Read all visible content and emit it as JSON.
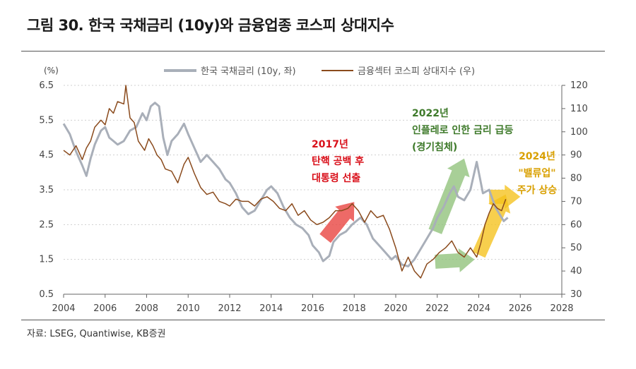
{
  "header": {
    "title": "그림 30. 한국 국채금리 (10y)와 금융업종 코스피 상대지수"
  },
  "footer": {
    "source": "자료: LSEG, Quantiwise, KB증권"
  },
  "colors": {
    "bond": "#a9afb9",
    "kospi": "#8a4a1c",
    "arrow_red": "#e8403c",
    "arrow_green": "#8fc27a",
    "arrow_yellow": "#f5c21b",
    "anno_red": "#d9101a",
    "anno_green": "#3e7a2a",
    "anno_yellow": "#d9a000"
  },
  "chart_data": {
    "type": "line",
    "xlabel": "",
    "ylabel_left": "(%)",
    "ylabel_right": "",
    "x_range": [
      2004,
      2028
    ],
    "x_ticks": [
      "2004",
      "2006",
      "2008",
      "2010",
      "2012",
      "2014",
      "2016",
      "2018",
      "2020",
      "2022",
      "2024",
      "2026",
      "2028"
    ],
    "y_left_range": [
      0.5,
      6.5
    ],
    "y_left_ticks": [
      "6.5",
      "5.5",
      "4.5",
      "3.5",
      "2.5",
      "1.5",
      "0.5"
    ],
    "y_right_range": [
      30,
      120
    ],
    "y_right_ticks": [
      "120",
      "110",
      "100",
      "90",
      "80",
      "70",
      "60",
      "50",
      "40",
      "30"
    ],
    "grid": "horizontal-dotted",
    "legend_position": "top-center",
    "series": [
      {
        "name": "한국 국채금리 (10y, 좌)",
        "axis": "left",
        "x": [
          2004.0,
          2004.3,
          2004.6,
          2004.9,
          2005.1,
          2005.3,
          2005.5,
          2005.8,
          2006.0,
          2006.2,
          2006.4,
          2006.6,
          2006.9,
          2007.2,
          2007.5,
          2007.8,
          2008.0,
          2008.2,
          2008.4,
          2008.6,
          2008.8,
          2009.0,
          2009.2,
          2009.5,
          2009.8,
          2010.0,
          2010.3,
          2010.6,
          2010.9,
          2011.2,
          2011.5,
          2011.8,
          2012.0,
          2012.3,
          2012.6,
          2012.9,
          2013.2,
          2013.5,
          2013.8,
          2014.0,
          2014.3,
          2014.6,
          2014.9,
          2015.2,
          2015.5,
          2015.8,
          2016.0,
          2016.3,
          2016.5,
          2016.8,
          2017.0,
          2017.3,
          2017.6,
          2017.9,
          2018.1,
          2018.3,
          2018.6,
          2018.9,
          2019.2,
          2019.5,
          2019.8,
          2020.0,
          2020.3,
          2020.6,
          2020.9,
          2021.2,
          2021.5,
          2021.8,
          2022.0,
          2022.3,
          2022.6,
          2022.8,
          2023.0,
          2023.3,
          2023.6,
          2023.9,
          2024.2,
          2024.5,
          2024.8,
          2025.0,
          2025.2,
          2025.4
        ],
        "values": [
          5.4,
          5.1,
          4.6,
          4.2,
          3.9,
          4.4,
          4.8,
          5.2,
          5.3,
          5.0,
          4.9,
          4.8,
          4.9,
          5.2,
          5.3,
          5.7,
          5.5,
          5.9,
          6.0,
          5.9,
          5.0,
          4.5,
          4.9,
          5.1,
          5.4,
          5.1,
          4.7,
          4.3,
          4.5,
          4.3,
          4.1,
          3.8,
          3.7,
          3.4,
          3.0,
          2.8,
          2.9,
          3.2,
          3.5,
          3.6,
          3.4,
          3.0,
          2.7,
          2.5,
          2.4,
          2.2,
          1.9,
          1.7,
          1.45,
          1.6,
          2.0,
          2.2,
          2.3,
          2.5,
          2.6,
          2.7,
          2.5,
          2.1,
          1.9,
          1.7,
          1.5,
          1.6,
          1.35,
          1.3,
          1.5,
          1.8,
          2.1,
          2.4,
          2.7,
          3.0,
          3.4,
          3.6,
          3.3,
          3.2,
          3.5,
          4.3,
          3.4,
          3.5,
          3.0,
          2.8,
          2.6,
          2.7
        ]
      },
      {
        "name": "금융섹터 코스피 상대지수 (우)",
        "axis": "right",
        "x": [
          2004.0,
          2004.3,
          2004.6,
          2004.9,
          2005.1,
          2005.3,
          2005.5,
          2005.8,
          2006.0,
          2006.2,
          2006.4,
          2006.6,
          2006.9,
          2007.0,
          2007.2,
          2007.4,
          2007.6,
          2007.9,
          2008.1,
          2008.3,
          2008.5,
          2008.7,
          2008.9,
          2009.2,
          2009.5,
          2009.8,
          2010.0,
          2010.3,
          2010.6,
          2010.9,
          2011.2,
          2011.5,
          2011.8,
          2012.0,
          2012.3,
          2012.6,
          2012.9,
          2013.2,
          2013.5,
          2013.8,
          2014.1,
          2014.4,
          2014.7,
          2015.0,
          2015.3,
          2015.6,
          2015.9,
          2016.2,
          2016.5,
          2016.8,
          2017.1,
          2017.4,
          2017.7,
          2017.9,
          2018.2,
          2018.5,
          2018.8,
          2019.1,
          2019.4,
          2019.7,
          2020.0,
          2020.3,
          2020.6,
          2020.9,
          2021.2,
          2021.5,
          2021.8,
          2022.1,
          2022.4,
          2022.7,
          2023.0,
          2023.3,
          2023.6,
          2023.9,
          2024.1,
          2024.3,
          2024.5,
          2024.7,
          2024.9,
          2025.1,
          2025.3
        ],
        "values": [
          92,
          90,
          94,
          88,
          93,
          96,
          102,
          105,
          103,
          110,
          108,
          113,
          112,
          120,
          106,
          104,
          96,
          92,
          97,
          94,
          90,
          88,
          84,
          83,
          78,
          86,
          89,
          82,
          76,
          73,
          74,
          70,
          69,
          68,
          71,
          70,
          70,
          68,
          71,
          72,
          70,
          67,
          66,
          69,
          64,
          66,
          62,
          60,
          61,
          63,
          66,
          66,
          67,
          69,
          66,
          61,
          66,
          63,
          64,
          58,
          50,
          40,
          46,
          40,
          37,
          43,
          45,
          48,
          50,
          53,
          48,
          46,
          50,
          46,
          52,
          60,
          65,
          69,
          67,
          66,
          71
        ]
      }
    ],
    "annotations": [
      {
        "lines": [
          "2017년",
          "탄핵 공백 후",
          "대통령 선출"
        ],
        "color": "red"
      },
      {
        "lines": [
          "2022년",
          "인플레로 인한 금리 급등",
          "(경기침체)"
        ],
        "color": "green"
      },
      {
        "lines": [
          "2024년",
          "\"밸류업\"",
          "주가 상승"
        ],
        "color": "yellow"
      }
    ]
  }
}
